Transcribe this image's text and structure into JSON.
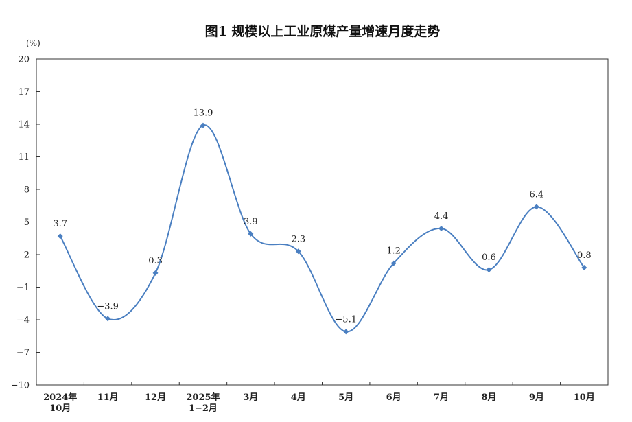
{
  "chart_data": {
    "type": "line",
    "title": "图1 规模以上工业原煤产量增速月度走势",
    "ylabel": "(%)",
    "xlabel": "",
    "ylim": [
      -10,
      20
    ],
    "yticks": [
      "20",
      "17",
      "14",
      "11",
      "8",
      "5",
      "2",
      "−1",
      "−4",
      "−7",
      "−10"
    ],
    "ytick_values": [
      20,
      17,
      14,
      11,
      8,
      5,
      2,
      -1,
      -4,
      -7,
      -10
    ],
    "categories": [
      [
        "2024年",
        "10月"
      ],
      [
        "11月"
      ],
      [
        "12月"
      ],
      [
        "2025年",
        "1−2月"
      ],
      [
        "3月"
      ],
      [
        "4月"
      ],
      [
        "5月"
      ],
      [
        "6月"
      ],
      [
        "7月"
      ],
      [
        "8月"
      ],
      [
        "9月"
      ],
      [
        "10月"
      ]
    ],
    "values": [
      3.7,
      -3.9,
      0.3,
      13.9,
      3.9,
      2.3,
      -5.1,
      1.2,
      4.4,
      0.6,
      6.4,
      0.8
    ],
    "value_labels": [
      "3.7",
      "−3.9",
      "0.3",
      "13.9",
      "3.9",
      "2.3",
      "−5.1",
      "1.2",
      "4.4",
      "0.6",
      "6.4",
      "0.8"
    ],
    "series_color": "#4a7fc1",
    "grid": false,
    "legend": "none",
    "smooth": true
  }
}
